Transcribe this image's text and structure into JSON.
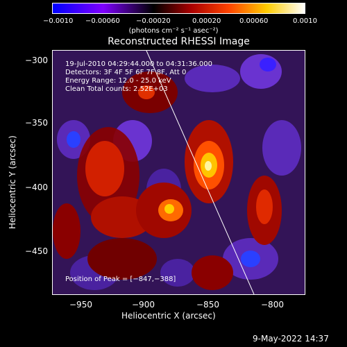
{
  "colorbar": {
    "tick_labels": [
      "−0.0010",
      "−0.00060",
      "−0.00020",
      "0.00020",
      "0.00060",
      "0.0010"
    ],
    "unit_label": "(photons cm⁻² s⁻¹ asec⁻²)"
  },
  "plot": {
    "title": "Reconstructed RHESSI Image",
    "xlabel": "Heliocentric X (arcsec)",
    "ylabel": "Heliocentric Y (arcsec)",
    "x_ticks": [
      "−950",
      "−900",
      "−850",
      "−800"
    ],
    "y_ticks": [
      "−300",
      "−350",
      "−400",
      "−450"
    ],
    "info_lines": [
      "19-Jul-2010 04:29:44.000 to 04:31:36.000",
      "Detectors: 3F 4F 5F 6F 7F 8F, Att 0",
      "Energy Range: 12.0 - 25.0 keV",
      "Clean     Total counts: 2.52E+03"
    ],
    "peak_label": "Position of Peak = [−847,−388]"
  },
  "footer": {
    "timestamp": "9-May-2022 14:37"
  }
}
